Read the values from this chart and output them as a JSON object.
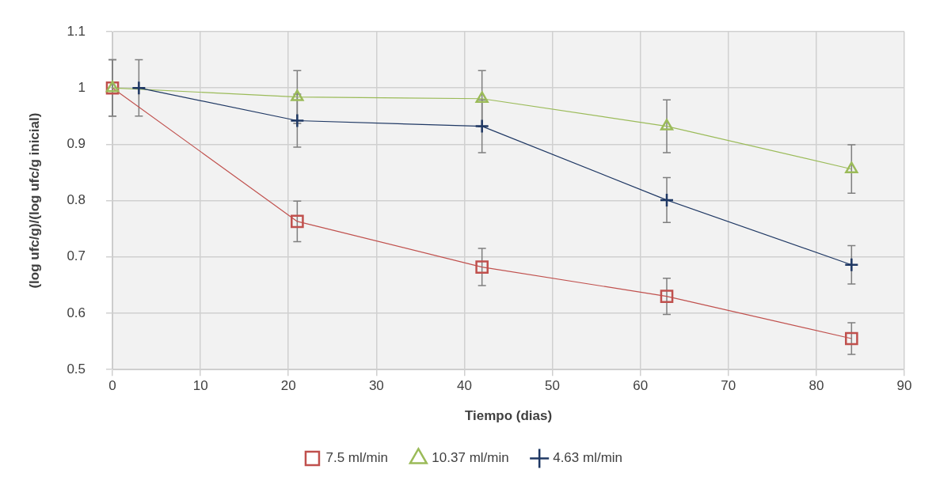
{
  "chart_data": {
    "type": "line",
    "xlabel": "Tiempo (dias)",
    "ylabel": "(log ufc/g)/(log ufc/g inicial)",
    "xlim": [
      0,
      90
    ],
    "xticks": [
      0,
      10,
      20,
      30,
      40,
      50,
      60,
      70,
      80,
      90
    ],
    "ylim": [
      0.5,
      1.1
    ],
    "yticks": [
      0.5,
      0.6,
      0.7,
      0.8,
      0.9,
      1,
      1.1
    ],
    "grid": true,
    "legend": "bottom",
    "line_style": "solid",
    "series": [
      {
        "name": "7.5 ml/min",
        "color": "#c0504d",
        "marker": "square",
        "x": [
          0,
          21,
          42,
          63,
          84
        ],
        "values": [
          1,
          0.763,
          0.682,
          0.63,
          0.555
        ],
        "errors": [
          0.05,
          0.036,
          0.033,
          0.032,
          0.028
        ]
      },
      {
        "name": "10.37 ml/min",
        "color": "#9bbb59",
        "marker": "triangle",
        "x": [
          0,
          21,
          42,
          63,
          84
        ],
        "values": [
          1,
          0.984,
          0.981,
          0.932,
          0.856
        ],
        "errors": [
          0.05,
          0.047,
          0.05,
          0.047,
          0.043
        ]
      },
      {
        "name": "4.63 ml/min",
        "color": "#1f3864",
        "marker": "cross",
        "x": [
          3,
          21,
          42,
          63,
          84
        ],
        "values": [
          1,
          0.942,
          0.932,
          0.801,
          0.686
        ],
        "errors": [
          0.05,
          0.047,
          0.047,
          0.04,
          0.034
        ]
      }
    ]
  }
}
